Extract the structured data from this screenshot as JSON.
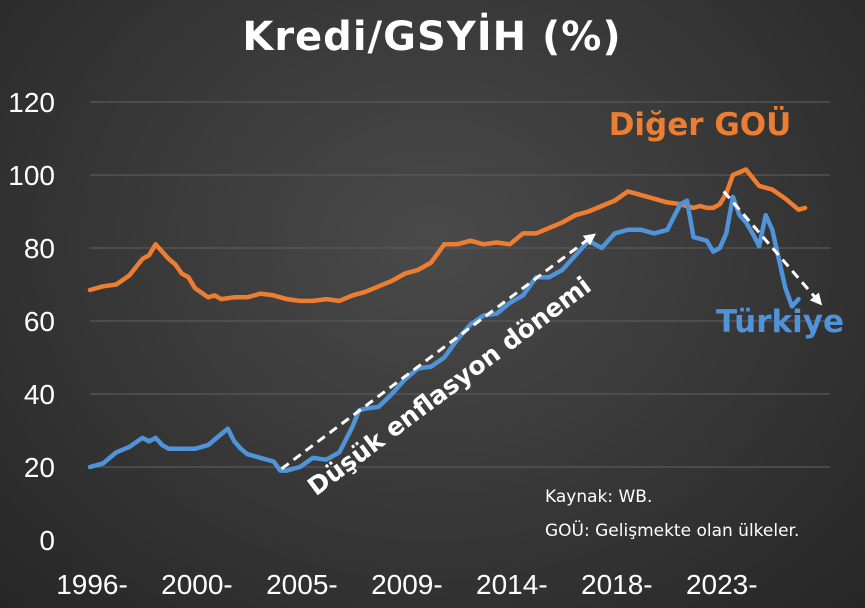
{
  "chart_data": {
    "type": "line",
    "title": "Kredi/GSYİH (%)",
    "xlabel": "",
    "ylabel": "",
    "ylim": [
      0,
      120
    ],
    "yticks": [
      0,
      20,
      40,
      60,
      80,
      100,
      120
    ],
    "xlim": [
      1996,
      2024.2
    ],
    "xtick_labels": [
      "1996-",
      "2000-",
      "2005-",
      "2009-",
      "2014-",
      "2018-",
      "2023-"
    ],
    "xtick_values": [
      1996,
      2000,
      2004,
      2008,
      2012,
      2016,
      2020
    ],
    "grid": true,
    "series": [
      {
        "name": "Diğer GOÜ",
        "color": "#ED7D31",
        "x": [
          1996.0,
          1996.5,
          1997.0,
          1997.5,
          1998.0,
          1998.25,
          1998.5,
          1998.75,
          1999.0,
          1999.25,
          1999.5,
          1999.75,
          2000.0,
          2000.5,
          2000.75,
          2001.0,
          2001.5,
          2002.0,
          2002.5,
          2003.0,
          2003.5,
          2004.0,
          2004.5,
          2005.0,
          2005.5,
          2006.0,
          2006.5,
          2007.0,
          2007.5,
          2008.0,
          2008.5,
          2009.0,
          2009.5,
          2010.0,
          2010.5,
          2011.0,
          2011.5,
          2012.0,
          2012.5,
          2013.0,
          2013.5,
          2014.0,
          2014.5,
          2015.0,
          2015.5,
          2016.0,
          2016.5,
          2017.0,
          2017.5,
          2018.0,
          2018.5,
          2019.0,
          2019.25,
          2019.5,
          2019.75,
          2020.0,
          2020.25,
          2020.5,
          2021.0,
          2021.5,
          2022.0,
          2022.5,
          2022.75,
          2023.0,
          2023.25
        ],
        "y": [
          68.5,
          69.5,
          70,
          72.5,
          77,
          78,
          81,
          79,
          77,
          75.5,
          73,
          72,
          69,
          66.5,
          67,
          66,
          66.5,
          66.5,
          67.5,
          67,
          66,
          65.5,
          65.5,
          66,
          65.5,
          67,
          68,
          69.5,
          71,
          73,
          74,
          76,
          81,
          81,
          82,
          81,
          81.5,
          81,
          84,
          84,
          85.5,
          87,
          89,
          90,
          91.5,
          93,
          95.5,
          94.5,
          93.5,
          92.5,
          92,
          91,
          91.5,
          91,
          91,
          92,
          95,
          100,
          101.5,
          97,
          96,
          93.5,
          92,
          90.5,
          91
        ]
      },
      {
        "name": "Türkiye",
        "color": "#4F93D8",
        "x": [
          1996.0,
          1996.5,
          1997.0,
          1997.5,
          1998.0,
          1998.25,
          1998.5,
          1998.75,
          1999.0,
          1999.5,
          2000.0,
          2000.5,
          2001.0,
          2001.25,
          2001.5,
          2001.75,
          2002.0,
          2002.5,
          2003.0,
          2003.25,
          2003.5,
          2004.0,
          2004.5,
          2005.0,
          2005.5,
          2006.0,
          2006.25,
          2006.5,
          2007.0,
          2007.5,
          2008.0,
          2008.5,
          2009.0,
          2009.5,
          2010.0,
          2010.5,
          2011.0,
          2011.5,
          2012.0,
          2012.5,
          2013.0,
          2013.5,
          2014.0,
          2014.5,
          2015.0,
          2015.5,
          2016.0,
          2016.5,
          2017.0,
          2017.5,
          2018.0,
          2018.5,
          2018.75,
          2019.0,
          2019.5,
          2019.75,
          2020.0,
          2020.25,
          2020.5,
          2020.75,
          2021.0,
          2021.25,
          2021.5,
          2021.75,
          2022.0,
          2022.25,
          2022.5,
          2022.75,
          2023.0
        ],
        "y": [
          20,
          21,
          24,
          25.5,
          28,
          27,
          28,
          26,
          25,
          25,
          25,
          26,
          29,
          30.5,
          27,
          25,
          23.5,
          22.5,
          21.5,
          19,
          19,
          20,
          22.5,
          22,
          24,
          31,
          35.5,
          36,
          36.5,
          40,
          44,
          47,
          47.5,
          50,
          55,
          59,
          61.5,
          62,
          65,
          67,
          72,
          72,
          74,
          78,
          82,
          80,
          84,
          85,
          85,
          84,
          85,
          92,
          93,
          83,
          82,
          79,
          80,
          84,
          94,
          89,
          87,
          84,
          80.5,
          89,
          85,
          77,
          69,
          64,
          66
        ]
      }
    ],
    "annotations": {
      "series_label_orange": "Diğer GOÜ",
      "series_label_blue": "Türkiye",
      "arrow_text": "Düşük enflasyon dönemi",
      "source_line1": "Kaynak: WB.",
      "source_line2": "GOÜ: Gelişmekte olan ülkeler."
    }
  }
}
